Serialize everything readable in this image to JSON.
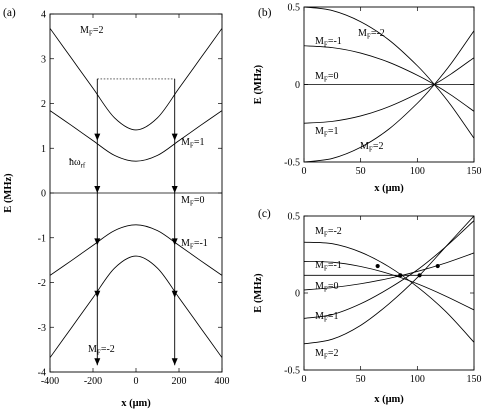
{
  "chart_data": [
    {
      "panel": "(a)",
      "type": "line",
      "xlabel": "x (μm)",
      "ylabel": "E (MHz)",
      "xlim": [
        -400,
        400
      ],
      "ylim": [
        -4,
        4
      ],
      "xticks": [
        -400,
        -200,
        0,
        200,
        400
      ],
      "yticks": [
        -4,
        -3,
        -2,
        -1,
        0,
        1,
        2,
        3,
        4
      ],
      "series": [
        {
          "name": "MF=2",
          "label_main": "M",
          "label_sub": "F",
          "label_rest": "=2",
          "x": [
            -400,
            -300,
            -200,
            -100,
            0,
            100,
            200,
            300,
            400
          ],
          "y": [
            3.68,
            3.01,
            2.34,
            1.68,
            1.41,
            1.68,
            2.34,
            3.01,
            3.68
          ]
        },
        {
          "name": "MF=1",
          "label_main": "M",
          "label_sub": "F",
          "label_rest": "=1",
          "x": [
            -400,
            -300,
            -200,
            -100,
            0,
            100,
            200,
            300,
            400
          ],
          "y": [
            1.84,
            1.51,
            1.17,
            0.84,
            0.71,
            0.84,
            1.17,
            1.51,
            1.84
          ]
        },
        {
          "name": "MF=0",
          "label_main": "M",
          "label_sub": "F",
          "label_rest": "=0",
          "x": [
            -400,
            400
          ],
          "y": [
            0,
            0
          ]
        },
        {
          "name": "MF=-1",
          "label_main": "M",
          "label_sub": "F",
          "label_rest": "=-1",
          "x": [
            -400,
            -300,
            -200,
            -100,
            0,
            100,
            200,
            300,
            400
          ],
          "y": [
            -1.84,
            -1.51,
            -1.17,
            -0.84,
            -0.71,
            -0.84,
            -1.17,
            -1.51,
            -1.84
          ]
        },
        {
          "name": "MF=-2",
          "label_main": "M",
          "label_sub": "F",
          "label_rest": "=-2",
          "x": [
            -400,
            -300,
            -200,
            -100,
            0,
            100,
            200,
            300,
            400
          ],
          "y": [
            -3.68,
            -3.01,
            -2.34,
            -1.68,
            -1.41,
            -1.68,
            -2.34,
            -3.01,
            -3.68
          ]
        }
      ],
      "dashed_level": {
        "x": [
          -180,
          180
        ],
        "y": 2.55
      },
      "transition_arrows": [
        {
          "x": -180,
          "y_from": 2.55,
          "y_to": -3.85,
          "arrowheads_at": [
            1.17,
            0,
            -1.17,
            -2.34
          ]
        },
        {
          "x": 180,
          "y_from": 2.55,
          "y_to": -3.85,
          "arrowheads_at": [
            1.17,
            0,
            -1.17,
            -2.34
          ]
        }
      ],
      "annotation": {
        "main": "ħω",
        "sub": "rf",
        "x": -345,
        "y": 0.9
      }
    },
    {
      "panel": "(b)",
      "type": "line",
      "xlabel": "x (μm)",
      "ylabel": "E (MHz)",
      "xlim": [
        0,
        150
      ],
      "ylim": [
        -0.5,
        0.5
      ],
      "xticks": [
        0,
        50,
        100,
        150
      ],
      "yticks": [
        -0.5,
        0,
        0.5
      ],
      "series": [
        {
          "name": "MF=-2",
          "label_main": "M",
          "label_sub": "F",
          "label_rest": "=-2",
          "x": [
            0,
            25,
            50,
            75,
            100,
            115,
            130,
            150
          ],
          "y": [
            0.5,
            0.477,
            0.405,
            0.287,
            0.121,
            0.0,
            -0.137,
            -0.347
          ]
        },
        {
          "name": "MF=-1",
          "label_main": "M",
          "label_sub": "F",
          "label_rest": "=-1",
          "x": [
            0,
            25,
            50,
            75,
            100,
            115,
            130,
            150
          ],
          "y": [
            0.25,
            0.238,
            0.203,
            0.143,
            0.06,
            0.0,
            -0.069,
            -0.173
          ]
        },
        {
          "name": "MF=0",
          "label_main": "M",
          "label_sub": "F",
          "label_rest": "=0",
          "x": [
            0,
            150
          ],
          "y": [
            0,
            0
          ]
        },
        {
          "name": "MF=1",
          "label_main": "M",
          "label_sub": "F",
          "label_rest": "=1",
          "x": [
            0,
            25,
            50,
            75,
            100,
            115,
            130,
            150
          ],
          "y": [
            -0.25,
            -0.238,
            -0.203,
            -0.143,
            -0.06,
            0.0,
            0.069,
            0.173
          ]
        },
        {
          "name": "MF=2",
          "label_main": "M",
          "label_sub": "F",
          "label_rest": "=2",
          "x": [
            0,
            25,
            50,
            75,
            100,
            115,
            130,
            150
          ],
          "y": [
            -0.5,
            -0.477,
            -0.405,
            -0.287,
            -0.121,
            0.0,
            0.137,
            0.347
          ]
        }
      ]
    },
    {
      "panel": "(c)",
      "type": "line",
      "xlabel": "x (μm)",
      "ylabel": "E (MHz)",
      "xlim": [
        0,
        150
      ],
      "ylim": [
        -0.5,
        0.5
      ],
      "xticks": [
        0,
        50,
        100,
        150
      ],
      "yticks": [
        -0.5,
        0,
        0.5
      ],
      "series": [
        {
          "name": "MF=-2",
          "label_main": "M",
          "label_sub": "F",
          "label_rest": "=-2",
          "x": [
            0,
            25,
            50,
            75,
            100,
            125,
            150
          ],
          "y": [
            0.33,
            0.32,
            0.265,
            0.17,
            0.04,
            -0.12,
            -0.32
          ]
        },
        {
          "name": "MF=-1",
          "label_main": "M",
          "label_sub": "F",
          "label_rest": "=-1",
          "x": [
            0,
            25,
            50,
            75,
            100,
            125,
            150
          ],
          "y": [
            0.205,
            0.2,
            0.172,
            0.125,
            0.06,
            -0.02,
            -0.11
          ]
        },
        {
          "name": "MF=0",
          "label_main": "M",
          "label_sub": "F",
          "label_rest": "=0",
          "x": [
            0,
            25,
            50,
            75,
            100,
            125,
            150
          ],
          "y": [
            0.02,
            0.035,
            0.06,
            0.095,
            0.14,
            0.195,
            0.26
          ]
        },
        {
          "name": "MF=1",
          "label_main": "M",
          "label_sub": "F",
          "label_rest": "=1",
          "x": [
            0,
            25,
            50,
            75,
            100,
            125,
            150
          ],
          "y": [
            -0.165,
            -0.14,
            -0.07,
            0.03,
            0.15,
            0.3,
            0.47
          ]
        },
        {
          "name": "MF=2",
          "label_main": "M",
          "label_sub": "F",
          "label_rest": "=2",
          "x": [
            0,
            25,
            50,
            75,
            100,
            125,
            150
          ],
          "y": [
            -0.33,
            -0.3,
            -0.21,
            -0.07,
            0.1,
            0.3,
            0.5
          ]
        }
      ],
      "resonance_line": {
        "x": [
          0,
          150
        ],
        "y": 0.115
      },
      "crossing_points": [
        {
          "x": 65,
          "y": 0.175
        },
        {
          "x": 85,
          "y": 0.115
        },
        {
          "x": 102,
          "y": 0.115
        },
        {
          "x": 118,
          "y": 0.175
        }
      ]
    }
  ]
}
